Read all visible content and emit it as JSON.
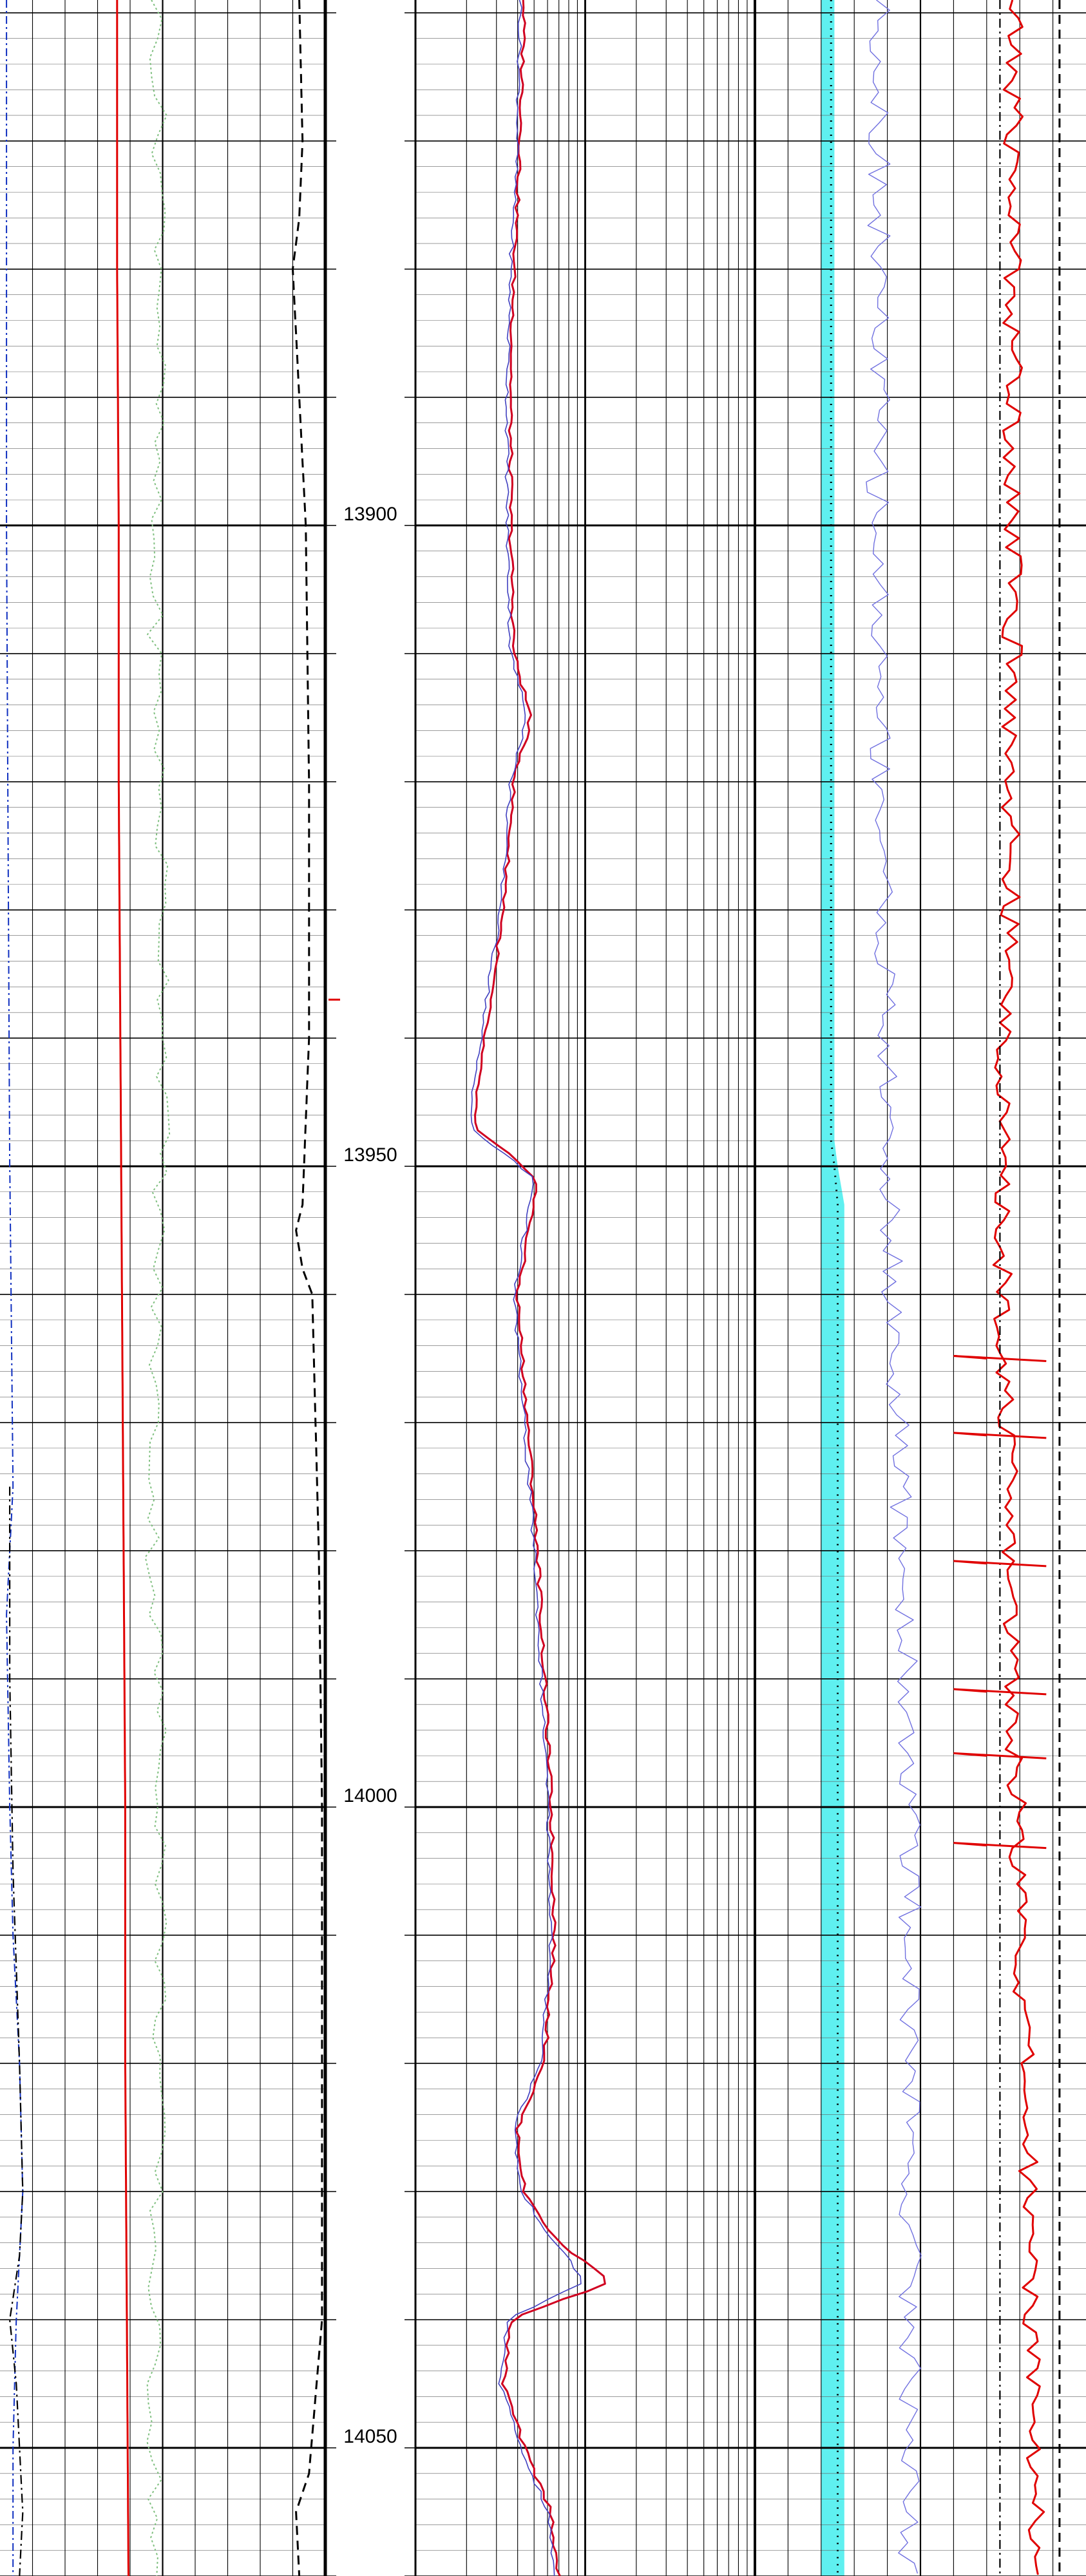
{
  "chart_data": {
    "type": "line",
    "title": "",
    "depth_axis": {
      "range": [
        13859,
        14060
      ],
      "labels": [
        "13900",
        "13950",
        "14000",
        "14050"
      ],
      "marker_depth": 13937
    },
    "tracks": [
      {
        "id": "track1",
        "scale": "linear",
        "series": [
          {
            "style": "solid-red",
            "color": "#e00000",
            "depths": [
              13859,
              13880,
              13900,
              13920,
              13940,
              13960,
              13980,
              14000,
              14020,
              14040,
              14060
            ],
            "values": [
              0.36,
              0.36,
              0.365,
              0.365,
              0.37,
              0.375,
              0.38,
              0.385,
              0.385,
              0.39,
              0.395
            ]
          },
          {
            "style": "dashed-black",
            "color": "#000000",
            "depths": [
              13859,
              13870,
              13876,
              13880,
              13900,
              13920,
              13940,
              13953,
              13955,
              13958,
              13960,
              13980,
              14000,
              14020,
              14040,
              14052,
              14055,
              14060
            ],
            "values": [
              0.92,
              0.93,
              0.92,
              0.9,
              0.94,
              0.95,
              0.95,
              0.93,
              0.91,
              0.93,
              0.96,
              0.98,
              0.99,
              0.99,
              0.99,
              0.95,
              0.91,
              0.92
            ]
          },
          {
            "style": "dashdot-blue",
            "color": "#1030c0",
            "depths": [
              13859,
              13900,
              13950,
              13975,
              13985,
              14000,
              14010,
              14020,
              14030,
              14040,
              14050,
              14060
            ],
            "values": [
              0.02,
              0.02,
              0.03,
              0.04,
              0.02,
              0.03,
              0.04,
              0.06,
              0.07,
              0.05,
              0.04,
              0.04
            ]
          },
          {
            "style": "dashdot-black",
            "color": "#000000",
            "depths": [
              13975,
              13990,
              14005,
              14020,
              14030,
              14035,
              14040,
              14045,
              14055,
              14060
            ],
            "values": [
              0.03,
              0.03,
              0.04,
              0.06,
              0.07,
              0.06,
              0.03,
              0.05,
              0.07,
              0.06
            ]
          },
          {
            "style": "dotted-green",
            "color": "#7fbf7f",
            "depths": [
              13859,
              13880,
              13900,
              13920,
              13940,
              13960,
              13980,
              14000,
              14020,
              14040,
              14060
            ],
            "values": [
              0.48,
              0.5,
              0.47,
              0.49,
              0.51,
              0.48,
              0.47,
              0.5,
              0.49,
              0.47,
              0.48
            ]
          }
        ]
      },
      {
        "id": "track2",
        "scale": "log",
        "series": [
          {
            "style": "solid-red",
            "color": "#d00020",
            "depths": [
              13859,
              13870,
              13880,
              13890,
              13900,
              13910,
              13915,
              13920,
              13930,
              13937,
              13942,
              13947,
              13949,
              13951,
              13960,
              13970,
              13980,
              13990,
              14000,
              14010,
              14020,
              14025,
              14030,
              14034,
              14037,
              14040,
              14045,
              14050,
              14055,
              14060
            ],
            "values": [
              0.32,
              0.31,
              0.29,
              0.28,
              0.28,
              0.29,
              0.34,
              0.29,
              0.26,
              0.22,
              0.19,
              0.17,
              0.27,
              0.36,
              0.3,
              0.33,
              0.36,
              0.38,
              0.4,
              0.41,
              0.38,
              0.3,
              0.32,
              0.42,
              0.58,
              0.28,
              0.26,
              0.32,
              0.4,
              0.42
            ]
          },
          {
            "style": "thin-blue",
            "color": "#4040c0",
            "depths": [
              13859,
              13870,
              13880,
              13890,
              13900,
              13910,
              13915,
              13920,
              13930,
              13937,
              13942,
              13947,
              13949,
              13951,
              13960,
              13970,
              13980,
              13990,
              14000,
              14010,
              14020,
              14025,
              14030,
              14034,
              14037,
              14040,
              14045,
              14050,
              14055,
              14060
            ],
            "values": [
              0.31,
              0.3,
              0.28,
              0.27,
              0.27,
              0.28,
              0.33,
              0.28,
              0.25,
              0.21,
              0.18,
              0.16,
              0.26,
              0.35,
              0.29,
              0.32,
              0.35,
              0.37,
              0.39,
              0.4,
              0.37,
              0.29,
              0.31,
              0.41,
              0.5,
              0.27,
              0.25,
              0.31,
              0.39,
              0.41
            ]
          }
        ]
      },
      {
        "id": "track3",
        "scale": "linear",
        "series": [
          {
            "style": "cyan-fill",
            "color": "#5ff0f0",
            "depths": [
              13859,
              13948,
              13950,
              13953,
              14060
            ],
            "values": [
              0.24,
              0.24,
              0.25,
              0.27,
              0.27
            ]
          },
          {
            "style": "dotted-black",
            "color": "#000000",
            "depths": [
              13859,
              13948,
              13950,
              13953,
              14060
            ],
            "values": [
              0.23,
              0.23,
              0.24,
              0.25,
              0.25
            ]
          },
          {
            "style": "thin-blue-noisy",
            "color": "#7070e0",
            "depths": [
              13859,
              13900,
              13930,
              13950,
              13970,
              13990,
              14010,
              14030,
              14050,
              14060
            ],
            "values": [
              0.38,
              0.37,
              0.39,
              0.4,
              0.43,
              0.46,
              0.47,
              0.47,
              0.47,
              0.46
            ]
          },
          {
            "style": "solid-red-noisy",
            "color": "#e00000",
            "depths": [
              13859,
              13900,
              13930,
              13950,
              13970,
              13990,
              14010,
              14030,
              14050,
              14060
            ],
            "values": [
              0.78,
              0.78,
              0.77,
              0.74,
              0.76,
              0.78,
              0.8,
              0.83,
              0.85,
              0.85
            ]
          },
          {
            "style": "dashdot-black",
            "color": "#000000",
            "depths": [
              13859,
              14060
            ],
            "values": [
              0.74,
              0.74
            ]
          },
          {
            "style": "dashed-black",
            "color": "#000000",
            "depths": [
              13859,
              14060
            ],
            "values": [
              0.92,
              0.92
            ]
          }
        ]
      }
    ]
  }
}
